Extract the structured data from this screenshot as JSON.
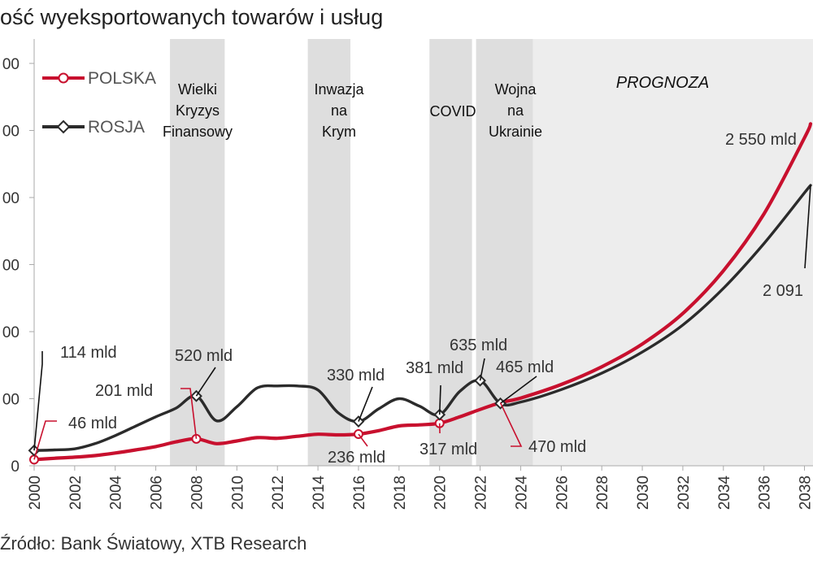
{
  "title": "ość wyeksportowanych towarów i usług",
  "source": "Źródło: Bank Światowy, XTB Research",
  "colors": {
    "polska": "#c8102e",
    "rosja": "#2b2b2b",
    "band": "#dedede",
    "forecast": "#ededed"
  },
  "chart_data": {
    "type": "line",
    "title": "ość wyeksportowanych towarów i usług",
    "xlim": [
      2000,
      2038.3
    ],
    "ylim": [
      0,
      3000
    ],
    "x_ticks": [
      "2000",
      "2002",
      "2004",
      "2006",
      "2008",
      "2010",
      "2012",
      "2014",
      "2016",
      "2018",
      "2020",
      "2022",
      "2024",
      "2026",
      "2028",
      "2030",
      "2032",
      "2034",
      "2036",
      "2038"
    ],
    "y_ticks": [
      {
        "value": 0,
        "label": "0"
      },
      {
        "value": 500,
        "label": "00"
      },
      {
        "value": 1000,
        "label": "00"
      },
      {
        "value": 1500,
        "label": "00"
      },
      {
        "value": 2000,
        "label": "00"
      },
      {
        "value": 2500,
        "label": "00"
      },
      {
        "value": 3000,
        "label": "00"
      }
    ],
    "legend": [
      {
        "name": "POLSKA",
        "color": "#c8102e",
        "marker": "circle"
      },
      {
        "name": "ROSJA",
        "color": "#2b2b2b",
        "marker": "diamond"
      }
    ],
    "series": [
      {
        "name": "POLSKA",
        "x": [
          2000,
          2001,
          2002,
          2003,
          2004,
          2005,
          2006,
          2007,
          2008,
          2009,
          2010,
          2011,
          2012,
          2013,
          2014,
          2015,
          2016,
          2017,
          2018,
          2019,
          2020,
          2021,
          2022,
          2023,
          2024,
          2026,
          2028,
          2030,
          2032,
          2034,
          2036,
          2038,
          2038.3
        ],
        "y": [
          46,
          56,
          64,
          76,
          95,
          118,
          143,
          178,
          201,
          165,
          185,
          210,
          205,
          220,
          235,
          230,
          236,
          262,
          297,
          305,
          317,
          365,
          420,
          470,
          505,
          606,
          738,
          908,
          1136,
          1454,
          1878,
          2445,
          2550
        ]
      },
      {
        "name": "ROSJA",
        "x": [
          2000,
          2001,
          2002,
          2003,
          2004,
          2005,
          2006,
          2007,
          2008,
          2009,
          2010,
          2011,
          2012,
          2013,
          2014,
          2015,
          2016,
          2017,
          2018,
          2019,
          2020,
          2021,
          2022,
          2023,
          2024,
          2026,
          2028,
          2030,
          2032,
          2034,
          2036,
          2038,
          2038.3
        ],
        "y": [
          114,
          118,
          126,
          165,
          225,
          295,
          365,
          430,
          520,
          335,
          440,
          580,
          595,
          595,
          565,
          395,
          330,
          425,
          500,
          445,
          381,
          555,
          635,
          465,
          475,
          568,
          690,
          848,
          1050,
          1323,
          1657,
          2035,
          2091
        ]
      }
    ],
    "shaded_periods": [
      {
        "label": [
          "Wielki",
          "Kryzys",
          "Finansowy"
        ],
        "from": 2006.7,
        "to": 2009.4
      },
      {
        "label": [
          "Inwazja",
          "na",
          "Krym"
        ],
        "from": 2013.5,
        "to": 2015.6
      },
      {
        "label": [
          "COVID"
        ],
        "from": 2019.5,
        "to": 2021.6
      },
      {
        "label": [
          "Wojna",
          "na",
          "Ukrainie"
        ],
        "from": 2021.8,
        "to": 2024.6
      }
    ],
    "forecast": {
      "label": "PROGNOZA",
      "from": 2024.6
    },
    "annotations": [
      {
        "text": "114 mld",
        "series": "ROSJA",
        "x": 2000
      },
      {
        "text": "46 mld",
        "series": "POLSKA",
        "x": 2000
      },
      {
        "text": "201 mld",
        "series": "POLSKA",
        "x": 2008
      },
      {
        "text": "520 mld",
        "series": "ROSJA",
        "x": 2008
      },
      {
        "text": "330 mld",
        "series": "ROSJA",
        "x": 2016
      },
      {
        "text": "236 mld",
        "series": "POLSKA",
        "x": 2016
      },
      {
        "text": "381 mld",
        "series": "ROSJA",
        "x": 2020
      },
      {
        "text": "317 mld",
        "series": "POLSKA",
        "x": 2020
      },
      {
        "text": "635 mld",
        "series": "ROSJA",
        "x": 2022
      },
      {
        "text": "465 mld",
        "series": "ROSJA",
        "x": 2023
      },
      {
        "text": "470 mld",
        "series": "POLSKA",
        "x": 2023
      },
      {
        "text": "2 550 mld",
        "series": "POLSKA",
        "x": 2038.3
      },
      {
        "text": "2 091",
        "series": "ROSJA",
        "x": 2038.3
      }
    ]
  }
}
